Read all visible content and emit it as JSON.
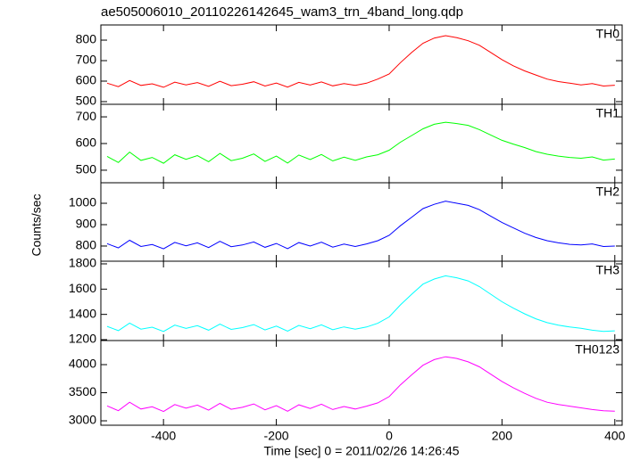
{
  "chart_data": [
    {
      "type": "line",
      "title": "ae505006010_20110226142645_wam3_trn_4band_long.qdp",
      "x": [
        -500,
        -480,
        -460,
        -440,
        -420,
        -400,
        -380,
        -360,
        -340,
        -320,
        -300,
        -280,
        -260,
        -240,
        -220,
        -200,
        -180,
        -160,
        -140,
        -120,
        -100,
        -80,
        -60,
        -40,
        -20,
        0,
        20,
        40,
        60,
        80,
        100,
        120,
        140,
        160,
        180,
        200,
        220,
        240,
        260,
        280,
        300,
        320,
        340,
        360,
        380,
        400
      ],
      "series": [
        {
          "name": "TH0",
          "color": "#ff0000",
          "values": [
            590,
            573,
            603,
            579,
            587,
            570,
            595,
            582,
            593,
            575,
            599,
            578,
            585,
            597,
            576,
            591,
            571,
            594,
            581,
            596,
            577,
            588,
            579,
            590,
            610,
            635,
            690,
            740,
            785,
            810,
            822,
            812,
            797,
            775,
            740,
            705,
            675,
            650,
            630,
            610,
            598,
            590,
            582,
            588,
            576,
            580
          ]
        }
      ],
      "xlim": [
        -511,
        413
      ],
      "xticks": [
        -400,
        -200,
        0,
        200,
        400
      ],
      "ylim": [
        487,
        874
      ],
      "yticks": [
        500,
        600,
        700,
        800
      ]
    },
    {
      "type": "line",
      "x": [
        -500,
        -480,
        -460,
        -440,
        -420,
        -400,
        -380,
        -360,
        -340,
        -320,
        -300,
        -280,
        -260,
        -240,
        -220,
        -200,
        -180,
        -160,
        -140,
        -120,
        -100,
        -80,
        -60,
        -40,
        -20,
        0,
        20,
        40,
        60,
        80,
        100,
        120,
        140,
        160,
        180,
        200,
        220,
        240,
        260,
        280,
        300,
        320,
        340,
        360,
        380,
        400
      ],
      "series": [
        {
          "name": "TH1",
          "color": "#00ff00",
          "values": [
            552,
            529,
            568,
            537,
            548,
            526,
            558,
            541,
            555,
            532,
            563,
            536,
            545,
            561,
            533,
            553,
            527,
            557,
            540,
            559,
            535,
            549,
            537,
            550,
            558,
            575,
            605,
            630,
            655,
            672,
            680,
            675,
            668,
            652,
            632,
            612,
            598,
            585,
            570,
            560,
            553,
            548,
            545,
            550,
            538,
            542
          ]
        }
      ],
      "xlim": [
        -511,
        413
      ],
      "xticks": [
        -400,
        -200,
        0,
        200,
        400
      ],
      "ylim": [
        453,
        747
      ],
      "yticks": [
        500,
        600,
        700
      ]
    },
    {
      "type": "line",
      "ylabel": "Counts/sec",
      "x": [
        -500,
        -480,
        -460,
        -440,
        -420,
        -400,
        -380,
        -360,
        -340,
        -320,
        -300,
        -280,
        -260,
        -240,
        -220,
        -200,
        -180,
        -160,
        -140,
        -120,
        -100,
        -80,
        -60,
        -40,
        -20,
        0,
        20,
        40,
        60,
        80,
        100,
        120,
        140,
        160,
        180,
        200,
        220,
        240,
        260,
        280,
        300,
        320,
        340,
        360,
        380,
        400
      ],
      "series": [
        {
          "name": "TH2",
          "color": "#0000ff",
          "values": [
            811,
            791,
            827,
            798,
            807,
            787,
            817,
            801,
            815,
            793,
            822,
            797,
            805,
            819,
            794,
            812,
            788,
            816,
            800,
            818,
            795,
            809,
            798,
            810,
            825,
            850,
            895,
            935,
            975,
            995,
            1010,
            1000,
            990,
            970,
            940,
            910,
            885,
            860,
            840,
            825,
            815,
            808,
            805,
            810,
            798,
            800
          ]
        }
      ],
      "xlim": [
        -511,
        413
      ],
      "xticks": [
        -400,
        -200,
        0,
        200,
        400
      ],
      "ylim": [
        729,
        1096
      ],
      "yticks": [
        800,
        900,
        1000
      ]
    },
    {
      "type": "line",
      "x": [
        -500,
        -480,
        -460,
        -440,
        -420,
        -400,
        -380,
        -360,
        -340,
        -320,
        -300,
        -280,
        -260,
        -240,
        -220,
        -200,
        -180,
        -160,
        -140,
        -120,
        -100,
        -80,
        -60,
        -40,
        -20,
        0,
        20,
        40,
        60,
        80,
        100,
        120,
        140,
        160,
        180,
        200,
        220,
        240,
        260,
        280,
        300,
        320,
        340,
        360,
        380,
        400
      ],
      "series": [
        {
          "name": "TH3",
          "color": "#00ffff",
          "values": [
            1305,
            1271,
            1331,
            1283,
            1299,
            1265,
            1315,
            1289,
            1311,
            1275,
            1323,
            1281,
            1295,
            1319,
            1277,
            1307,
            1267,
            1313,
            1287,
            1317,
            1279,
            1301,
            1283,
            1300,
            1330,
            1380,
            1475,
            1560,
            1640,
            1680,
            1705,
            1690,
            1665,
            1620,
            1560,
            1500,
            1450,
            1405,
            1365,
            1335,
            1315,
            1300,
            1290,
            1275,
            1265,
            1270
          ]
        }
      ],
      "xlim": [
        -511,
        413
      ],
      "xticks": [
        -400,
        -200,
        0,
        200,
        400
      ],
      "ylim": [
        1193,
        1821
      ],
      "yticks": [
        1200,
        1400,
        1600,
        1800
      ]
    },
    {
      "type": "line",
      "xlabel": "Time [sec] 0 = 2011/02/26 14:26:45",
      "x": [
        -500,
        -480,
        -460,
        -440,
        -420,
        -400,
        -380,
        -360,
        -340,
        -320,
        -300,
        -280,
        -260,
        -240,
        -220,
        -200,
        -180,
        -160,
        -140,
        -120,
        -100,
        -80,
        -60,
        -40,
        -20,
        0,
        20,
        40,
        60,
        80,
        100,
        120,
        140,
        160,
        180,
        200,
        220,
        240,
        260,
        280,
        300,
        320,
        340,
        360,
        380,
        400
      ],
      "series": [
        {
          "name": "TH0123",
          "color": "#ff00ff",
          "values": [
            3265,
            3180,
            3330,
            3210,
            3250,
            3165,
            3290,
            3225,
            3280,
            3190,
            3310,
            3205,
            3240,
            3300,
            3195,
            3270,
            3170,
            3285,
            3220,
            3295,
            3200,
            3255,
            3210,
            3260,
            3320,
            3430,
            3640,
            3820,
            3990,
            4090,
            4140,
            4110,
            4050,
            3960,
            3830,
            3700,
            3590,
            3490,
            3400,
            3330,
            3290,
            3260,
            3230,
            3200,
            3180,
            3170
          ]
        }
      ],
      "xlim": [
        -511,
        413
      ],
      "xticks": [
        -400,
        -200,
        0,
        200,
        400
      ],
      "ylim": [
        2921,
        4429
      ],
      "yticks": [
        3000,
        3500,
        4000
      ]
    }
  ]
}
